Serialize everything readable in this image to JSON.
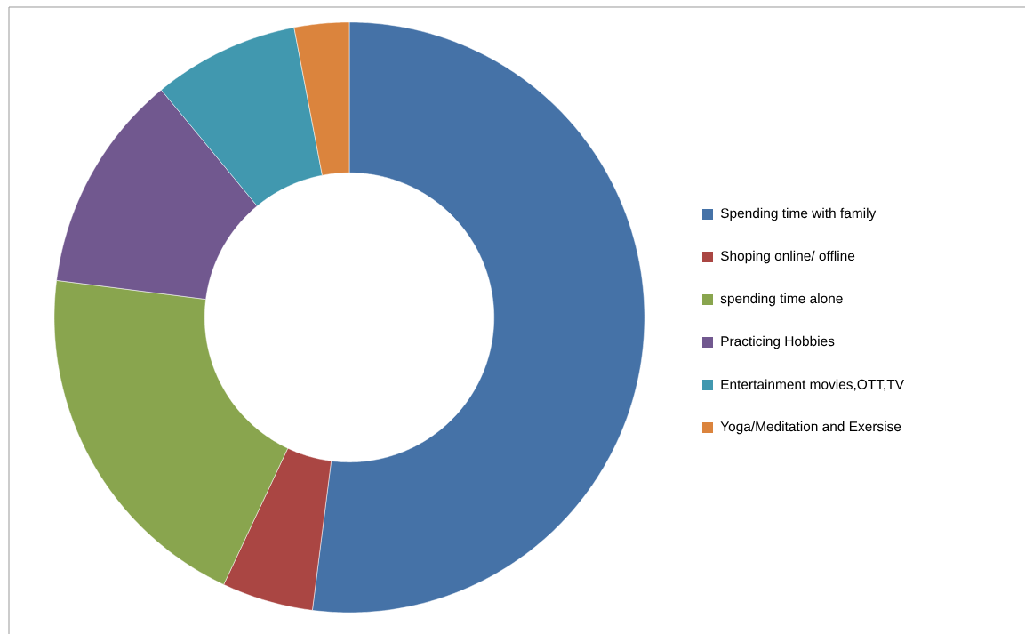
{
  "chart_data": {
    "type": "donut",
    "categories": [
      "Spending time with family",
      "Shoping online/ offline",
      "spending time alone",
      "Practicing Hobbies",
      "Entertainment movies,OTT,TV",
      "Yoga/Meditation and Exersise"
    ],
    "values": [
      52,
      5,
      20,
      12,
      8,
      3
    ],
    "colors": [
      "#4572a7",
      "#aa4643",
      "#89a54e",
      "#71588f",
      "#4198af",
      "#db843d"
    ],
    "legend": "right"
  }
}
